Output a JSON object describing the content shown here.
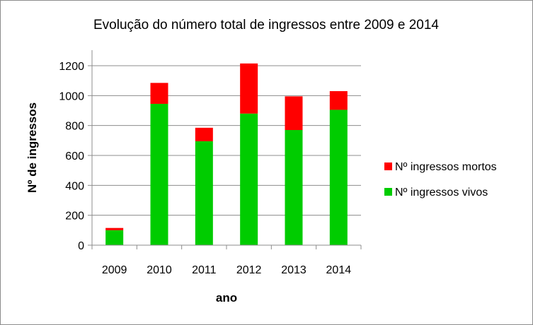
{
  "chart_data": {
    "type": "bar",
    "stacked": true,
    "title": "Evolução do número total de ingressos entre 2009 e 2014",
    "xlabel": "ano",
    "ylabel": "Nº de ingressos",
    "categories": [
      "2009",
      "2010",
      "2011",
      "2012",
      "2013",
      "2014"
    ],
    "ylim": [
      0,
      1200
    ],
    "yticks": [
      0,
      200,
      400,
      600,
      800,
      1000,
      1200
    ],
    "grid": true,
    "legend_position": "right",
    "series": [
      {
        "name": "Nº ingressos vivos",
        "color": "#00cc00",
        "values": [
          100,
          945,
          695,
          880,
          770,
          905
        ]
      },
      {
        "name": "Nº ingressos mortos",
        "color": "#ff0000",
        "values": [
          15,
          140,
          90,
          335,
          225,
          125
        ]
      }
    ],
    "legend_order": [
      1,
      0
    ]
  }
}
